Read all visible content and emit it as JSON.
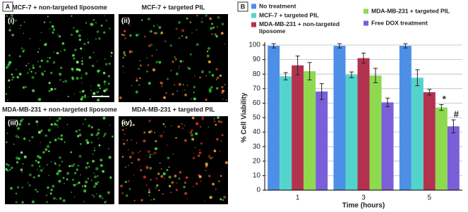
{
  "panel_a": {
    "label": "A",
    "images": [
      {
        "caption": "MCF-7 + non-targeted liposome",
        "label": "(i)"
      },
      {
        "caption": "MCF-7 + targeted PIL",
        "label": "(ii)"
      },
      {
        "caption": "MDA-MB-231 + non-targeted liposome",
        "label": "(iii)"
      },
      {
        "caption": "MDA-MB-231 + targeted PIL",
        "label": "(iv)"
      }
    ]
  },
  "chart_data": {
    "type": "bar",
    "panel_label": "B",
    "x_label": "Time (hours)",
    "y_label": "% Cell Viability",
    "categories": [
      "1",
      "3",
      "5"
    ],
    "series": [
      {
        "name": "No treatment",
        "color": "#4d8fe6",
        "values": [
          99.5,
          99.5,
          99.5
        ],
        "errors": [
          1.5,
          1.5,
          1.5
        ]
      },
      {
        "name": "MCF-7 + targeted PIL",
        "color": "#52d4cc",
        "values": [
          78.5,
          79.5,
          77.5
        ],
        "errors": [
          2.5,
          2,
          5.5
        ]
      },
      {
        "name": "MDA-MB-231 + non-targeted liposome",
        "color": "#b3334f",
        "values": [
          86,
          91,
          67.5
        ],
        "errors": [
          6.5,
          3.5,
          2
        ]
      },
      {
        "name": "MDA-MB-231 + targeted PIL",
        "color": "#8fd94f",
        "values": [
          82,
          79,
          57
        ],
        "errors": [
          6,
          5,
          2
        ],
        "markers": [
          null,
          null,
          "*"
        ]
      },
      {
        "name": "Free DOX treatment",
        "color": "#7a5fd9",
        "values": [
          68,
          60.5,
          44
        ],
        "errors": [
          5.5,
          3,
          4.5
        ],
        "markers": [
          null,
          null,
          "#"
        ]
      }
    ],
    "ylim": [
      0,
      100
    ],
    "yticks": [
      0,
      10,
      20,
      30,
      40,
      50,
      60,
      70,
      80,
      90,
      100
    ],
    "grid": true
  }
}
